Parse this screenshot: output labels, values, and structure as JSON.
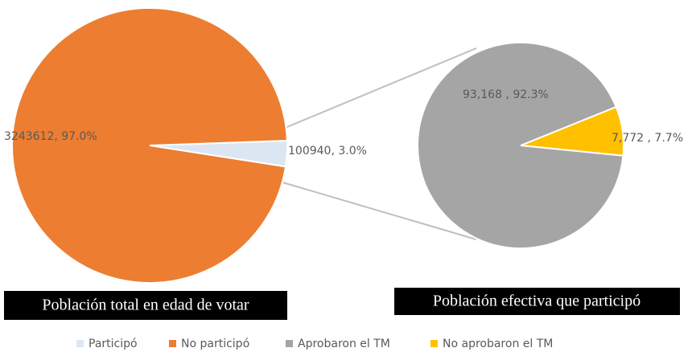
{
  "chart_data": [
    {
      "type": "pie",
      "title": "Población total en edad de votar",
      "categories": [
        "Participó",
        "No participó"
      ],
      "values": [
        100940,
        3243612
      ],
      "value_labels": [
        "100940, 3.0%",
        "3243612, 97.0%"
      ],
      "colors": [
        "#dce6f2",
        "#ed7d31"
      ]
    },
    {
      "type": "pie",
      "title": "Población efectiva que participó",
      "categories": [
        "Aprobaron el TM",
        "No aprobaron el TM"
      ],
      "values": [
        93168,
        7772
      ],
      "value_labels": [
        "93,168 , 92.3%",
        "7,772 , 7.7%"
      ],
      "colors": [
        "#a5a5a5",
        "#ffc000"
      ]
    }
  ]
}
